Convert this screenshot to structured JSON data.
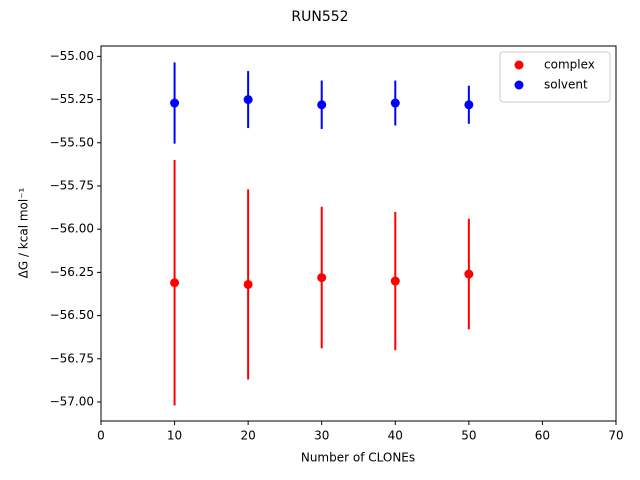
{
  "chart_data": {
    "type": "scatter",
    "title": "RUN552",
    "xlabel": "Number of CLONEs",
    "ylabel": "ΔG / kcal mol⁻¹",
    "x": [
      10,
      20,
      30,
      40,
      50
    ],
    "series": [
      {
        "name": "complex",
        "color": "#ff0000",
        "values": [
          -56.31,
          -56.32,
          -56.28,
          -56.3,
          -56.26
        ],
        "errors": [
          0.71,
          0.55,
          0.41,
          0.4,
          0.32
        ]
      },
      {
        "name": "solvent",
        "color": "#0000ff",
        "values": [
          -55.27,
          -55.25,
          -55.28,
          -55.27,
          -55.28
        ],
        "errors": [
          0.235,
          0.165,
          0.14,
          0.13,
          0.11
        ]
      }
    ],
    "xlim": [
      0,
      70
    ],
    "xticks": [
      0,
      10,
      20,
      30,
      40,
      50,
      60,
      70
    ],
    "ylim": [
      -57.11,
      -54.94
    ],
    "yticks": [
      {
        "value": -57,
        "label": "−57.00"
      },
      {
        "value": -56.75,
        "label": "−56.75"
      },
      {
        "value": -56.5,
        "label": "−56.50"
      },
      {
        "value": -56.25,
        "label": "−56.25"
      },
      {
        "value": -56,
        "label": "−56.00"
      },
      {
        "value": -55.75,
        "label": "−55.75"
      },
      {
        "value": -55.5,
        "label": "−55.50"
      },
      {
        "value": -55.25,
        "label": "−55.25"
      },
      {
        "value": -55,
        "label": "−55.00"
      }
    ],
    "grid": false,
    "legend": "upper right"
  }
}
